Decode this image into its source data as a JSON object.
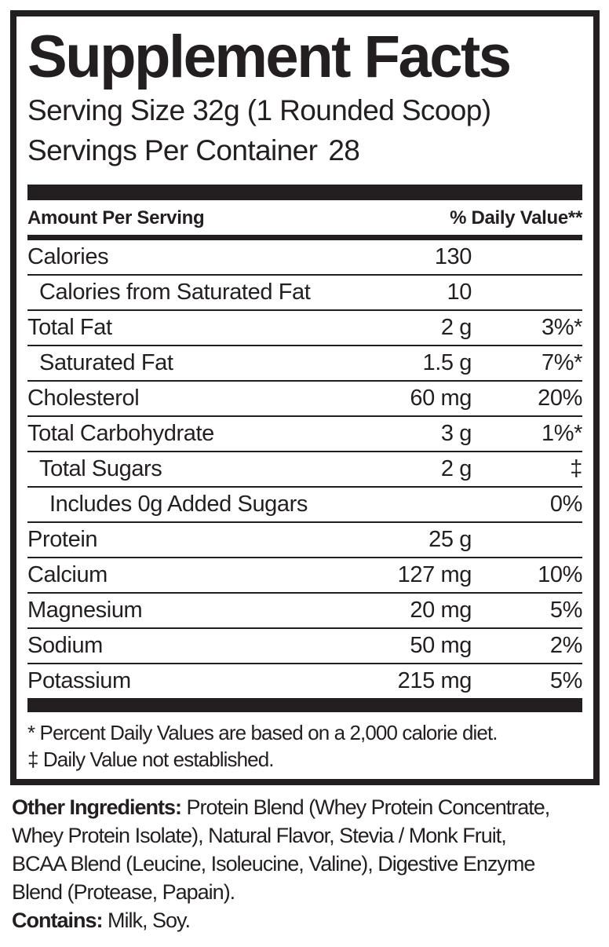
{
  "label": {
    "title": "Supplement Facts",
    "serving_size": "Serving Size 32g (1 Rounded Scoop)",
    "servings_per_container_label": "Servings Per Container",
    "servings_per_container_value": "28",
    "header": {
      "amount": "Amount Per Serving",
      "daily_value": "% Daily Value**"
    },
    "rows": [
      {
        "name": "Calories",
        "amount": "130",
        "dv": "",
        "indent": 0
      },
      {
        "name": "Calories from Saturated Fat",
        "amount": "10",
        "dv": "",
        "indent": 1
      },
      {
        "name": "Total Fat",
        "amount": "2 g",
        "dv": "3%*",
        "indent": 0
      },
      {
        "name": "Saturated Fat",
        "amount": "1.5 g",
        "dv": "7%*",
        "indent": 1
      },
      {
        "name": "Cholesterol",
        "amount": "60 mg",
        "dv": "20%",
        "indent": 0
      },
      {
        "name": "Total Carbohydrate",
        "amount": "3 g",
        "dv": "1%*",
        "indent": 0
      },
      {
        "name": "Total Sugars",
        "amount": "2 g",
        "dv": "‡",
        "indent": 1
      },
      {
        "name": "Includes 0g Added Sugars",
        "amount": "",
        "dv": "0%",
        "indent": 2
      },
      {
        "name": "Protein",
        "amount": "25 g",
        "dv": "",
        "indent": 0
      },
      {
        "name": "Calcium",
        "amount": "127 mg",
        "dv": "10%",
        "indent": 0
      },
      {
        "name": "Magnesium",
        "amount": "20 mg",
        "dv": "5%",
        "indent": 0
      },
      {
        "name": "Sodium",
        "amount": "50 mg",
        "dv": "2%",
        "indent": 0
      },
      {
        "name": "Potassium",
        "amount": "215 mg",
        "dv": "5%",
        "indent": 0
      }
    ],
    "footnotes": [
      "* Percent Daily Values are based on a 2,000 calorie diet.",
      "‡ Daily Value not established."
    ]
  },
  "ingredients": {
    "label": "Other Ingredients:",
    "line1": "Protein Blend (Whey Protein Concentrate,",
    "line2": "Whey Protein Isolate), Natural Flavor, Stevia / Monk Fruit,",
    "line3": "BCAA Blend (Leucine, Isoleucine, Valine), Digestive Enzyme",
    "line4": "Blend (Protease, Papain)."
  },
  "contains": {
    "label": "Contains:",
    "value": "Milk, Soy."
  },
  "colors": {
    "ink": "#231f20",
    "background": "#ffffff"
  }
}
